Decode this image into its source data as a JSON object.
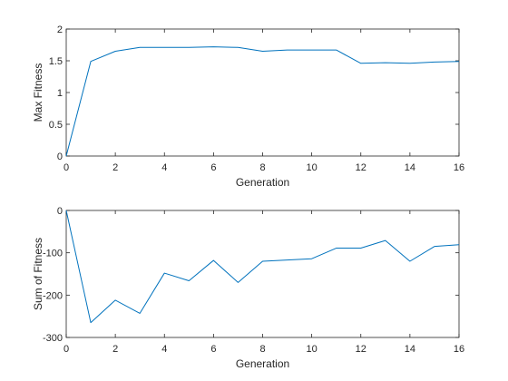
{
  "chart_data": [
    {
      "type": "line",
      "xlabel": "Generation",
      "ylabel": "Max Fitness",
      "xlim": [
        0,
        16
      ],
      "ylim": [
        0,
        2
      ],
      "xticks": [
        "0",
        "2",
        "4",
        "6",
        "8",
        "10",
        "12",
        "14",
        "16"
      ],
      "yticks": [
        "0",
        "0.5",
        "1",
        "1.5",
        "2"
      ],
      "grid": false,
      "series": [
        {
          "x": [
            0,
            1,
            2,
            3,
            4,
            5,
            6,
            7,
            8,
            9,
            10,
            11,
            12,
            13,
            14,
            15,
            16
          ],
          "values": [
            0,
            1.49,
            1.65,
            1.71,
            1.71,
            1.71,
            1.72,
            1.71,
            1.65,
            1.67,
            1.67,
            1.67,
            1.46,
            1.47,
            1.46,
            1.48,
            1.49
          ]
        }
      ]
    },
    {
      "type": "line",
      "xlabel": "Generation",
      "ylabel": "Sum of Fitness",
      "xlim": [
        0,
        16
      ],
      "ylim": [
        -300,
        0
      ],
      "xticks": [
        "0",
        "2",
        "4",
        "6",
        "8",
        "10",
        "12",
        "14",
        "16"
      ],
      "yticks": [
        "-300",
        "-200",
        "-100",
        "0"
      ],
      "grid": false,
      "series": [
        {
          "x": [
            0,
            1,
            2,
            3,
            4,
            5,
            6,
            7,
            8,
            9,
            10,
            11,
            12,
            13,
            14,
            15,
            16
          ],
          "values": [
            0,
            -265,
            -212,
            -243,
            -148,
            -166,
            -118,
            -170,
            -120,
            -117,
            -114,
            -89,
            -89,
            -71,
            -120,
            -85,
            -81
          ]
        }
      ]
    }
  ],
  "colors": {
    "line": "#0072BD",
    "axis": "#262626",
    "background": "#ffffff"
  }
}
